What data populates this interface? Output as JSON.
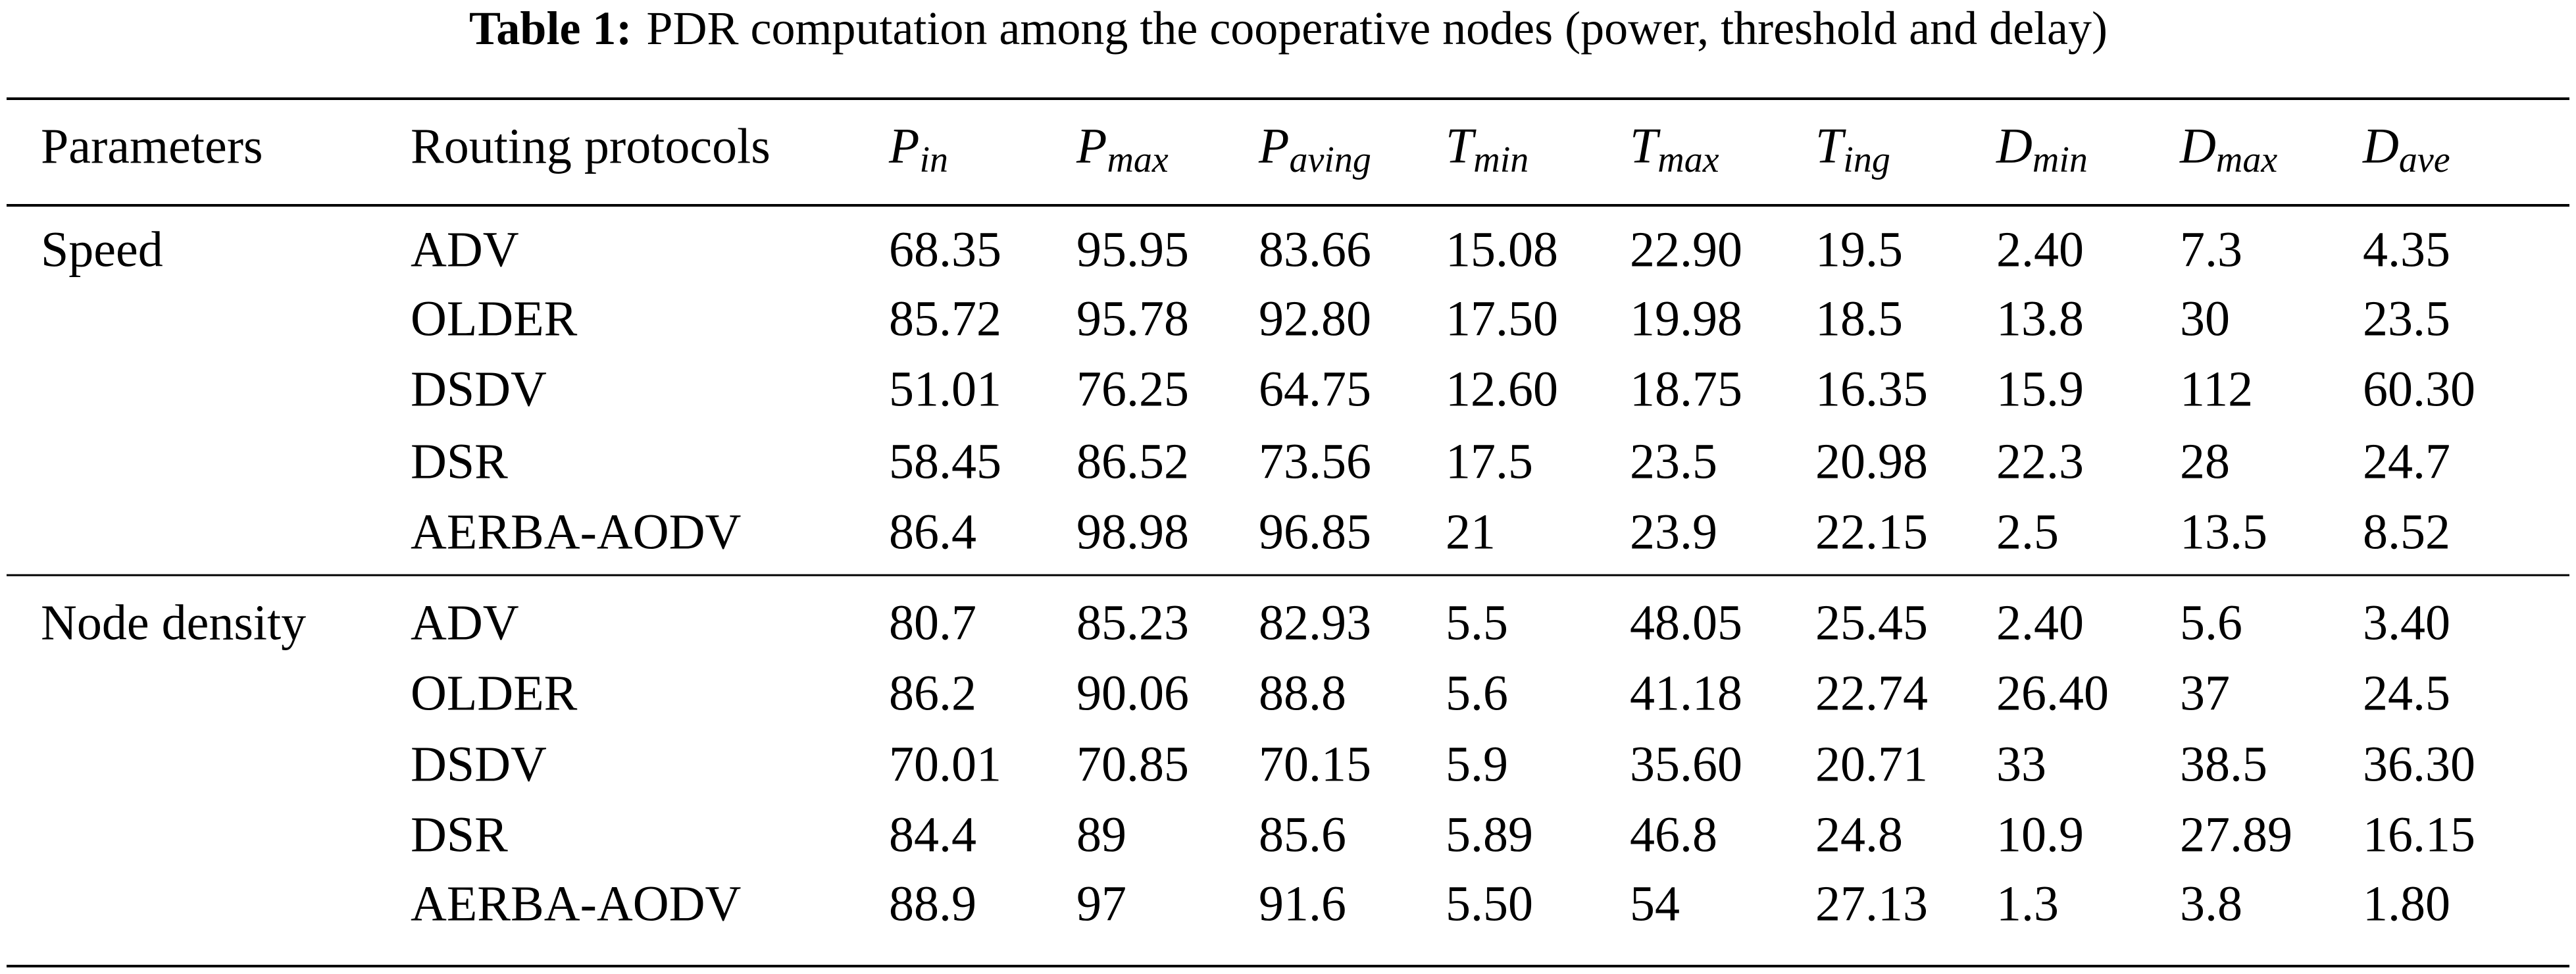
{
  "title": {
    "label": "Table 1:",
    "text": "PDR computation among the cooperative nodes (power, threshold and delay)"
  },
  "table": {
    "header": [
      "Parameters",
      "Routing protocols",
      {
        "symbol": "P",
        "sub": "in"
      },
      {
        "symbol": "P",
        "sub": "max"
      },
      {
        "symbol": "P",
        "sub": "aving"
      },
      {
        "symbol": "T",
        "sub": "min"
      },
      {
        "symbol": "T",
        "sub": "max"
      },
      {
        "symbol": "T",
        "sub": "ing"
      },
      {
        "symbol": "D",
        "sub": "min"
      },
      {
        "symbol": "D",
        "sub": "max"
      },
      {
        "symbol": "D",
        "sub": "ave"
      }
    ],
    "groups": [
      {
        "parameter": "Speed",
        "rows": [
          [
            "ADV",
            "68.35",
            "95.95",
            "83.66",
            "15.08",
            "22.90",
            "19.5",
            "2.40",
            "7.3",
            "4.35"
          ],
          [
            "OLDER",
            "85.72",
            "95.78",
            "92.80",
            "17.50",
            "19.98",
            "18.5",
            "13.8",
            "30",
            "23.5"
          ],
          [
            "DSDV",
            "51.01",
            "76.25",
            "64.75",
            "12.60",
            "18.75",
            "16.35",
            "15.9",
            "112",
            "60.30"
          ],
          [
            "DSR",
            "58.45",
            "86.52",
            "73.56",
            "17.5",
            "23.5",
            "20.98",
            "22.3",
            "28",
            "24.7"
          ],
          [
            "AERBA-AODV",
            "86.4",
            "98.98",
            "96.85",
            "21",
            "23.9",
            "22.15",
            "2.5",
            "13.5",
            "8.52"
          ]
        ]
      },
      {
        "parameter": "Node density",
        "rows": [
          [
            "ADV",
            "80.7",
            "85.23",
            "82.93",
            "5.5",
            "48.05",
            "25.45",
            "2.40",
            "5.6",
            "3.40"
          ],
          [
            "OLDER",
            "86.2",
            "90.06",
            "88.8",
            "5.6",
            "41.18",
            "22.74",
            "26.40",
            "37",
            "24.5"
          ],
          [
            "DSDV",
            "70.01",
            "70.85",
            "70.15",
            "5.9",
            "35.60",
            "20.71",
            "33",
            "38.5",
            "36.30"
          ],
          [
            "DSR",
            "84.4",
            "89",
            "85.6",
            "5.89",
            "46.8",
            "24.8",
            "10.9",
            "27.89",
            "16.15"
          ],
          [
            "AERBA-AODV",
            "88.9",
            "97",
            "91.6",
            "5.50",
            "54",
            "27.13",
            "1.3",
            "3.8",
            "1.80"
          ]
        ]
      }
    ]
  }
}
